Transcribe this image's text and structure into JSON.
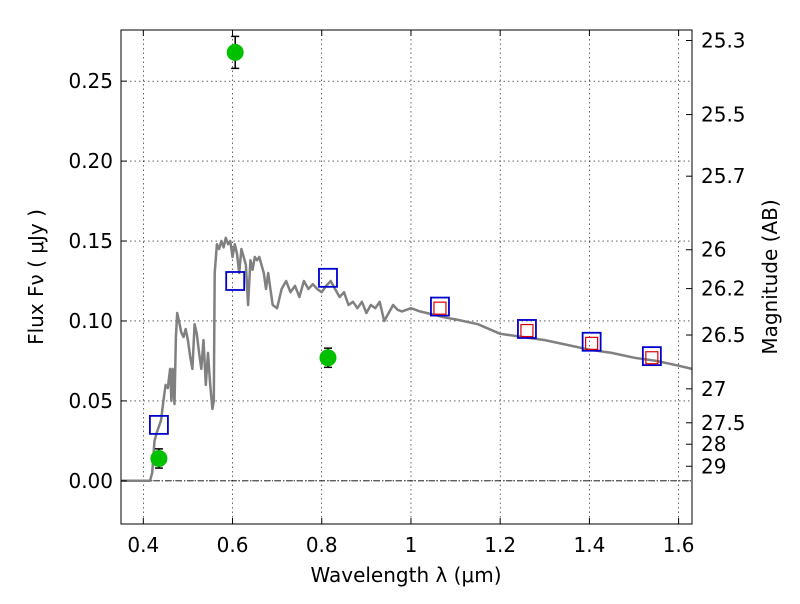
{
  "chart_data": {
    "type": "scatter",
    "xlabel": "Wavelength  λ (μm)",
    "ylabel": "Flux  Fν  ( μJy )",
    "ylabel_right": "Magnitude (AB)",
    "xlim": [
      0.35,
      1.63
    ],
    "ylim": [
      -0.027,
      0.282
    ],
    "grid": true,
    "x_ticks": [
      {
        "v": 0.4,
        "label": "0.4"
      },
      {
        "v": 0.6,
        "label": "0.6"
      },
      {
        "v": 0.8,
        "label": "0.8"
      },
      {
        "v": 1.0,
        "label": "1"
      },
      {
        "v": 1.2,
        "label": "1.2"
      },
      {
        "v": 1.4,
        "label": "1.4"
      },
      {
        "v": 1.6,
        "label": "1.6"
      }
    ],
    "y_ticks": [
      {
        "v": 0.0,
        "label": "0.00"
      },
      {
        "v": 0.05,
        "label": "0.05"
      },
      {
        "v": 0.1,
        "label": "0.10"
      },
      {
        "v": 0.15,
        "label": "0.15"
      },
      {
        "v": 0.2,
        "label": "0.20"
      },
      {
        "v": 0.25,
        "label": "0.25"
      }
    ],
    "right_ticks": [
      {
        "mag": 25.3,
        "label": "25.3"
      },
      {
        "mag": 25.5,
        "label": "25.5"
      },
      {
        "mag": 25.7,
        "label": "25.7"
      },
      {
        "mag": 26.0,
        "label": "26"
      },
      {
        "mag": 26.2,
        "label": "26.2"
      },
      {
        "mag": 26.5,
        "label": "26.5"
      },
      {
        "mag": 27.0,
        "label": "27"
      },
      {
        "mag": 27.5,
        "label": "27.5"
      },
      {
        "mag": 28.0,
        "label": "28"
      },
      {
        "mag": 29.0,
        "label": "29"
      }
    ],
    "sed_model": {
      "color": "#808080",
      "x": [
        0.35,
        0.37,
        0.39,
        0.4,
        0.41,
        0.415,
        0.42,
        0.425,
        0.43,
        0.44,
        0.445,
        0.45,
        0.455,
        0.46,
        0.463,
        0.466,
        0.47,
        0.473,
        0.476,
        0.48,
        0.485,
        0.49,
        0.495,
        0.5,
        0.505,
        0.51,
        0.515,
        0.52,
        0.525,
        0.53,
        0.535,
        0.54,
        0.545,
        0.55,
        0.555,
        0.558,
        0.56,
        0.565,
        0.57,
        0.575,
        0.58,
        0.585,
        0.59,
        0.595,
        0.6,
        0.605,
        0.61,
        0.615,
        0.62,
        0.625,
        0.63,
        0.635,
        0.64,
        0.645,
        0.65,
        0.655,
        0.66,
        0.665,
        0.67,
        0.675,
        0.68,
        0.685,
        0.69,
        0.7,
        0.71,
        0.72,
        0.73,
        0.74,
        0.75,
        0.76,
        0.77,
        0.78,
        0.79,
        0.8,
        0.81,
        0.82,
        0.83,
        0.84,
        0.85,
        0.86,
        0.87,
        0.88,
        0.89,
        0.9,
        0.91,
        0.92,
        0.93,
        0.94,
        0.95,
        0.96,
        0.97,
        0.98,
        0.99,
        1.0,
        1.02,
        1.05,
        1.08,
        1.1,
        1.15,
        1.2,
        1.25,
        1.3,
        1.35,
        1.4,
        1.45,
        1.5,
        1.55,
        1.6,
        1.63
      ],
      "y": [
        0.0,
        0.0,
        0.0,
        0.0,
        0.0,
        0.0,
        0.005,
        0.025,
        0.03,
        0.038,
        0.05,
        0.06,
        0.058,
        0.07,
        0.05,
        0.07,
        0.048,
        0.09,
        0.105,
        0.1,
        0.093,
        0.09,
        0.095,
        0.088,
        0.078,
        0.07,
        0.098,
        0.092,
        0.08,
        0.07,
        0.088,
        0.06,
        0.08,
        0.06,
        0.045,
        0.05,
        0.13,
        0.148,
        0.145,
        0.15,
        0.146,
        0.152,
        0.148,
        0.15,
        0.14,
        0.148,
        0.142,
        0.13,
        0.145,
        0.14,
        0.135,
        0.11,
        0.138,
        0.132,
        0.14,
        0.138,
        0.14,
        0.135,
        0.13,
        0.12,
        0.13,
        0.12,
        0.11,
        0.108,
        0.12,
        0.125,
        0.118,
        0.122,
        0.115,
        0.125,
        0.12,
        0.123,
        0.12,
        0.118,
        0.122,
        0.125,
        0.12,
        0.115,
        0.118,
        0.11,
        0.112,
        0.108,
        0.112,
        0.105,
        0.11,
        0.108,
        0.112,
        0.1,
        0.105,
        0.11,
        0.107,
        0.106,
        0.107,
        0.108,
        0.106,
        0.104,
        0.102,
        0.101,
        0.098,
        0.092,
        0.09,
        0.088,
        0.085,
        0.082,
        0.08,
        0.077,
        0.075,
        0.072,
        0.07
      ]
    },
    "series": [
      {
        "marker": "circle",
        "color": "#00c000",
        "points": [
          {
            "x": 0.435,
            "y": 0.014,
            "err": 0.006
          },
          {
            "x": 0.606,
            "y": 0.268,
            "err": 0.01
          },
          {
            "x": 0.814,
            "y": 0.077,
            "err": 0.006
          }
        ]
      },
      {
        "marker": "open-square",
        "color": "#0000cc",
        "points": [
          {
            "x": 0.435,
            "y": 0.035
          },
          {
            "x": 0.606,
            "y": 0.125
          },
          {
            "x": 0.814,
            "y": 0.127
          },
          {
            "x": 1.065,
            "y": 0.109
          },
          {
            "x": 1.26,
            "y": 0.095
          },
          {
            "x": 1.405,
            "y": 0.087
          },
          {
            "x": 1.54,
            "y": 0.078
          }
        ]
      },
      {
        "marker": "open-square",
        "color": "#dd0000",
        "points": [
          {
            "x": 1.065,
            "y": 0.108
          },
          {
            "x": 1.26,
            "y": 0.094
          },
          {
            "x": 1.405,
            "y": 0.086
          },
          {
            "x": 1.54,
            "y": 0.077
          }
        ]
      }
    ]
  }
}
